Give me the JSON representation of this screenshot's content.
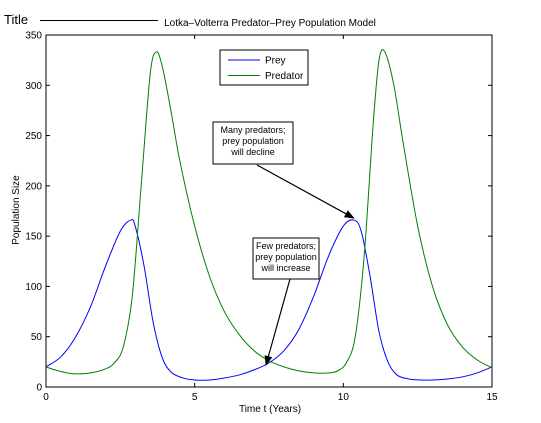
{
  "figure": {
    "tag": "Title"
  },
  "chart_data": {
    "type": "line",
    "title": "Lotka–Volterra Predator–Prey Population Model",
    "xlabel": "Time t (Years)",
    "ylabel": "Population Size",
    "xlim": [
      0,
      15
    ],
    "ylim": [
      0,
      350
    ],
    "xticks": [
      0,
      5,
      10,
      15
    ],
    "yticks": [
      0,
      50,
      100,
      150,
      200,
      250,
      300,
      350
    ],
    "grid": false,
    "legend_position": "top-center",
    "series": [
      {
        "name": "Prey",
        "color": "#0000ff",
        "x": [
          0,
          0.5,
          1.0,
          1.5,
          2.0,
          2.5,
          2.85,
          3.0,
          3.3,
          3.6,
          3.9,
          4.2,
          4.6,
          5.0,
          5.5,
          6.0,
          6.5,
          7.0,
          7.5,
          8.0,
          8.5,
          9.0,
          9.5,
          10.0,
          10.35,
          10.6,
          10.9,
          11.2,
          11.5,
          11.8,
          12.2,
          12.6,
          13.0,
          13.5,
          14.0,
          14.5,
          15.0
        ],
        "y": [
          20,
          30,
          50,
          80,
          120,
          155,
          166,
          160,
          120,
          65,
          30,
          15,
          9,
          7,
          7,
          9,
          12,
          17,
          24,
          36,
          57,
          90,
          130,
          160,
          166,
          155,
          110,
          55,
          25,
          12,
          8,
          7,
          7,
          8,
          10,
          14,
          20
        ]
      },
      {
        "name": "Predator",
        "color": "#008000",
        "x": [
          0,
          0.3,
          0.7,
          1.0,
          1.5,
          2.0,
          2.3,
          2.6,
          2.9,
          3.2,
          3.5,
          3.7,
          3.9,
          4.2,
          4.5,
          5.0,
          5.5,
          6.0,
          6.5,
          7.0,
          7.5,
          8.0,
          8.5,
          9.0,
          9.5,
          9.8,
          10.1,
          10.4,
          10.7,
          11.0,
          11.2,
          11.4,
          11.7,
          12.0,
          12.5,
          13.0,
          13.5,
          14.0,
          14.5,
          15.0
        ],
        "y": [
          20,
          17,
          14,
          13,
          14,
          18,
          24,
          40,
          90,
          200,
          310,
          333,
          320,
          275,
          225,
          160,
          110,
          75,
          52,
          36,
          26,
          20,
          16,
          14,
          14,
          16,
          24,
          50,
          130,
          260,
          325,
          333,
          300,
          245,
          160,
          100,
          62,
          40,
          27,
          19
        ]
      }
    ],
    "annotations": [
      {
        "lines": [
          "Many predators;",
          "prey population",
          "will decline"
        ],
        "arrow_to": [
          10.35,
          166
        ]
      },
      {
        "lines": [
          "Few predators;",
          "prey population",
          "will increase"
        ],
        "arrow_to": [
          7.4,
          20
        ]
      }
    ]
  }
}
